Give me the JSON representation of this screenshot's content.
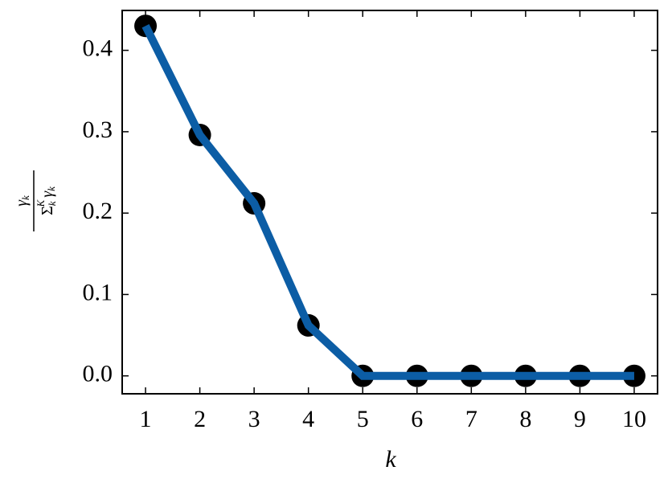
{
  "chart_data": {
    "type": "line",
    "xlabel": "k",
    "ylabel": {
      "numerator": [
        "γ",
        "k"
      ],
      "denominator": [
        "Σ",
        "k",
        "K",
        "γ",
        "k"
      ]
    },
    "x": [
      1,
      2,
      3,
      4,
      5,
      6,
      7,
      8,
      9,
      10
    ],
    "series": [
      {
        "color": "#0c5da5",
        "marker_color": "#000000",
        "values": [
          0.43,
          0.296,
          0.212,
          0.062,
          0,
          0,
          0,
          0,
          0,
          0
        ]
      }
    ],
    "xlim": [
      0.57,
      10.43
    ],
    "ylim": [
      -0.022,
      0.449
    ],
    "xticks": [
      1,
      2,
      3,
      4,
      5,
      6,
      7,
      8,
      9,
      10
    ],
    "yticks": [
      {
        "value": 0,
        "label": "0.0"
      },
      0.1,
      0.2,
      0.3,
      0.4
    ]
  }
}
